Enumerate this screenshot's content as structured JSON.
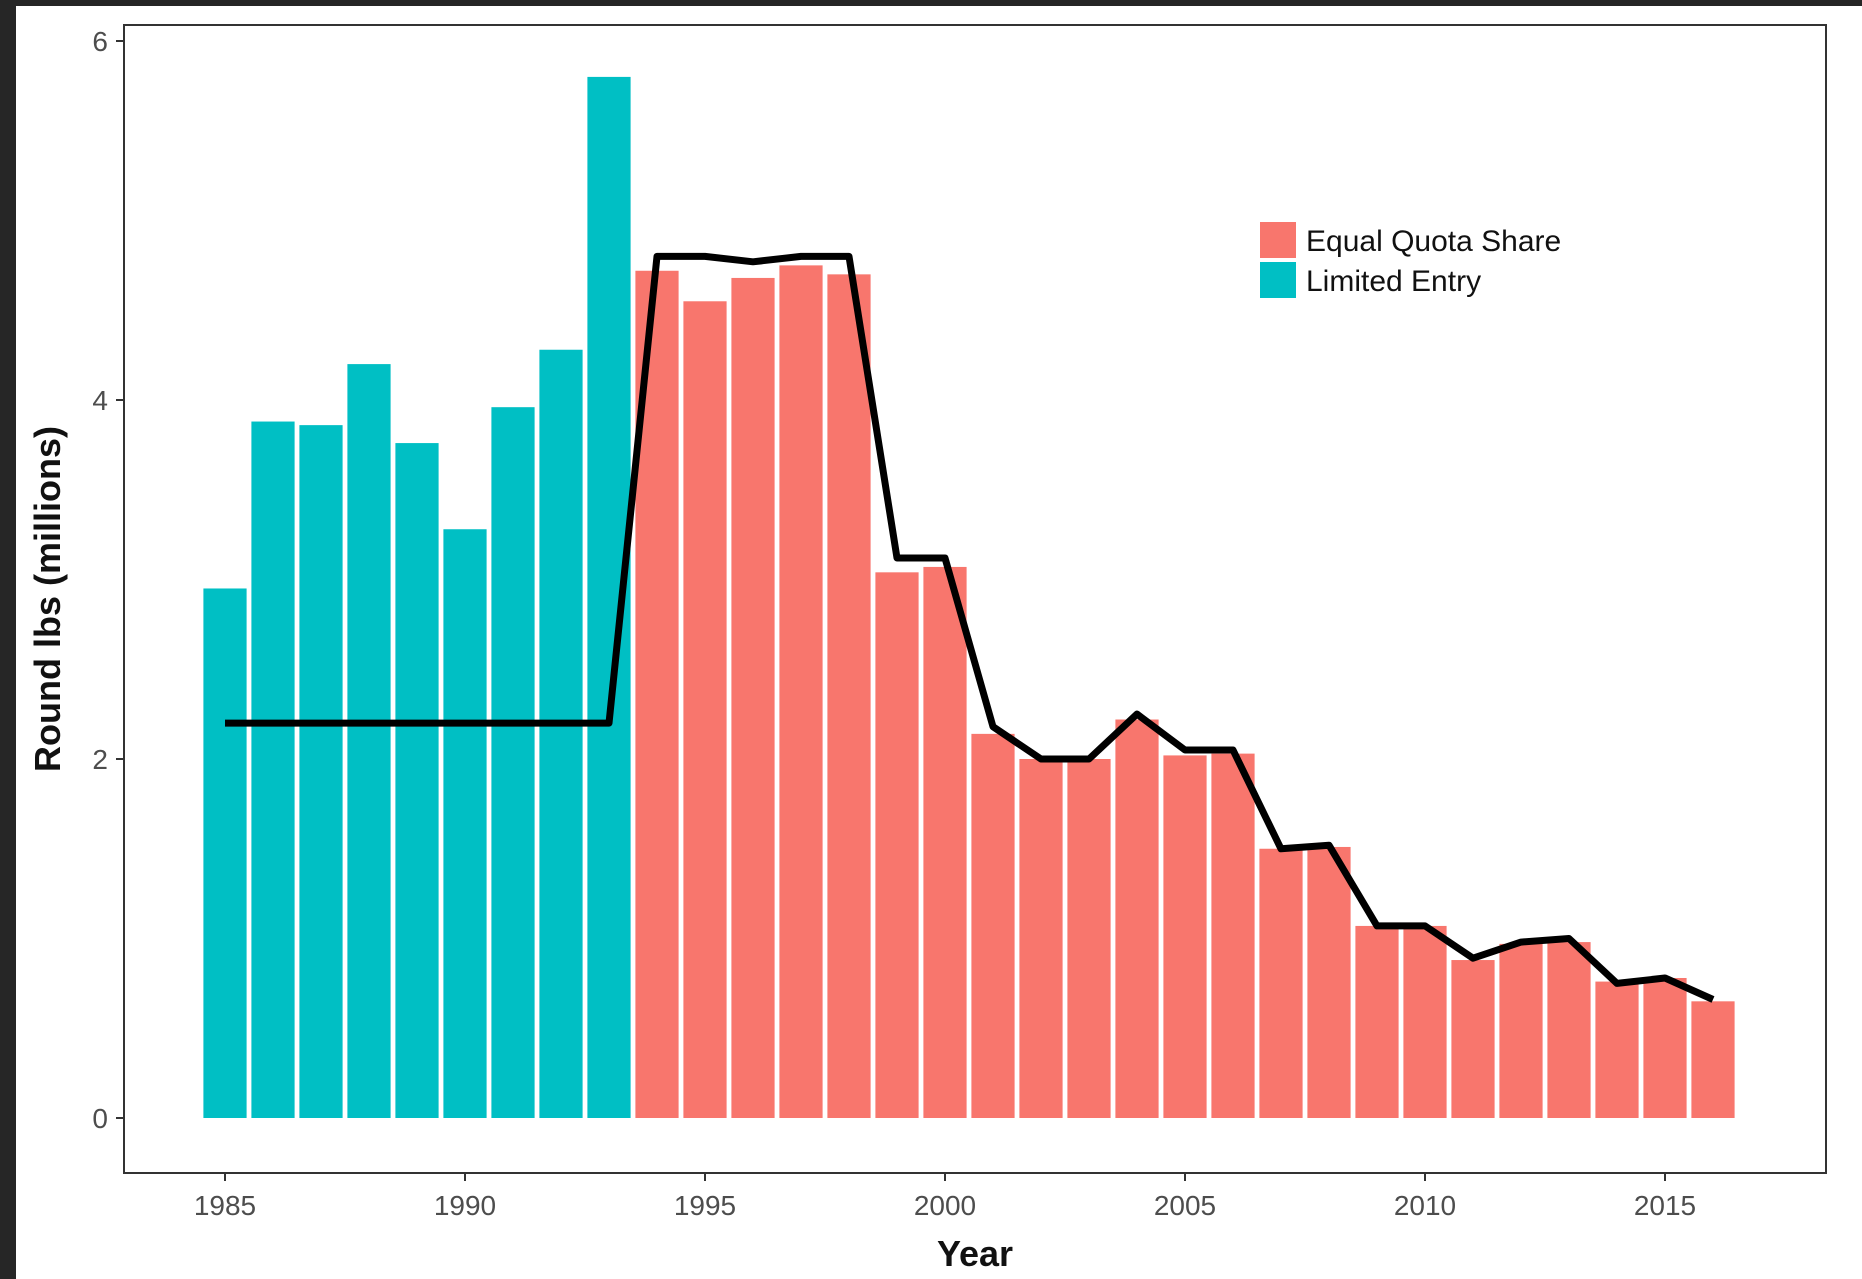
{
  "chart_data": {
    "type": "bar",
    "xlabel": "Year",
    "ylabel": "Round lbs (millions)",
    "xlim": [
      1984.5,
      2016.5
    ],
    "ylim": [
      0,
      6
    ],
    "x_ticks": [
      1985,
      1990,
      1995,
      2000,
      2005,
      2010,
      2015
    ],
    "y_ticks": [
      0,
      2,
      4,
      6
    ],
    "grid": false,
    "legend_position": "top-right",
    "series": [
      {
        "name": "Equal Quota Share",
        "color": "#F8766D",
        "x": [
          1994,
          1995,
          1996,
          1997,
          1998,
          1999,
          2000,
          2001,
          2002,
          2003,
          2004,
          2005,
          2006,
          2007,
          2008,
          2009,
          2010,
          2011,
          2012,
          2013,
          2014,
          2015,
          2016
        ],
        "values": [
          4.72,
          4.55,
          4.68,
          4.75,
          4.7,
          3.04,
          3.07,
          2.14,
          2.0,
          2.0,
          2.22,
          2.02,
          2.03,
          1.5,
          1.51,
          1.07,
          1.07,
          0.88,
          0.97,
          0.98,
          0.76,
          0.78,
          0.65
        ]
      },
      {
        "name": "Limited Entry",
        "color": "#00BFC4",
        "x": [
          1985,
          1986,
          1987,
          1988,
          1989,
          1990,
          1991,
          1992,
          1993
        ],
        "values": [
          2.95,
          3.88,
          3.86,
          4.2,
          3.76,
          3.28,
          3.96,
          4.28,
          5.8
        ]
      }
    ],
    "line": {
      "color": "#000000",
      "x": [
        1985,
        1993,
        1994,
        1995,
        1996,
        1997,
        1998,
        1999,
        2000,
        2001,
        2002,
        2003,
        2004,
        2005,
        2006,
        2007,
        2008,
        2009,
        2010,
        2011,
        2012,
        2013,
        2014,
        2015,
        2016
      ],
      "values": [
        2.2,
        2.2,
        4.8,
        4.8,
        4.77,
        4.8,
        4.8,
        3.12,
        3.12,
        2.18,
        2.0,
        2.0,
        2.25,
        2.05,
        2.05,
        1.5,
        1.52,
        1.07,
        1.07,
        0.89,
        0.98,
        1.0,
        0.75,
        0.78,
        0.66
      ]
    }
  }
}
